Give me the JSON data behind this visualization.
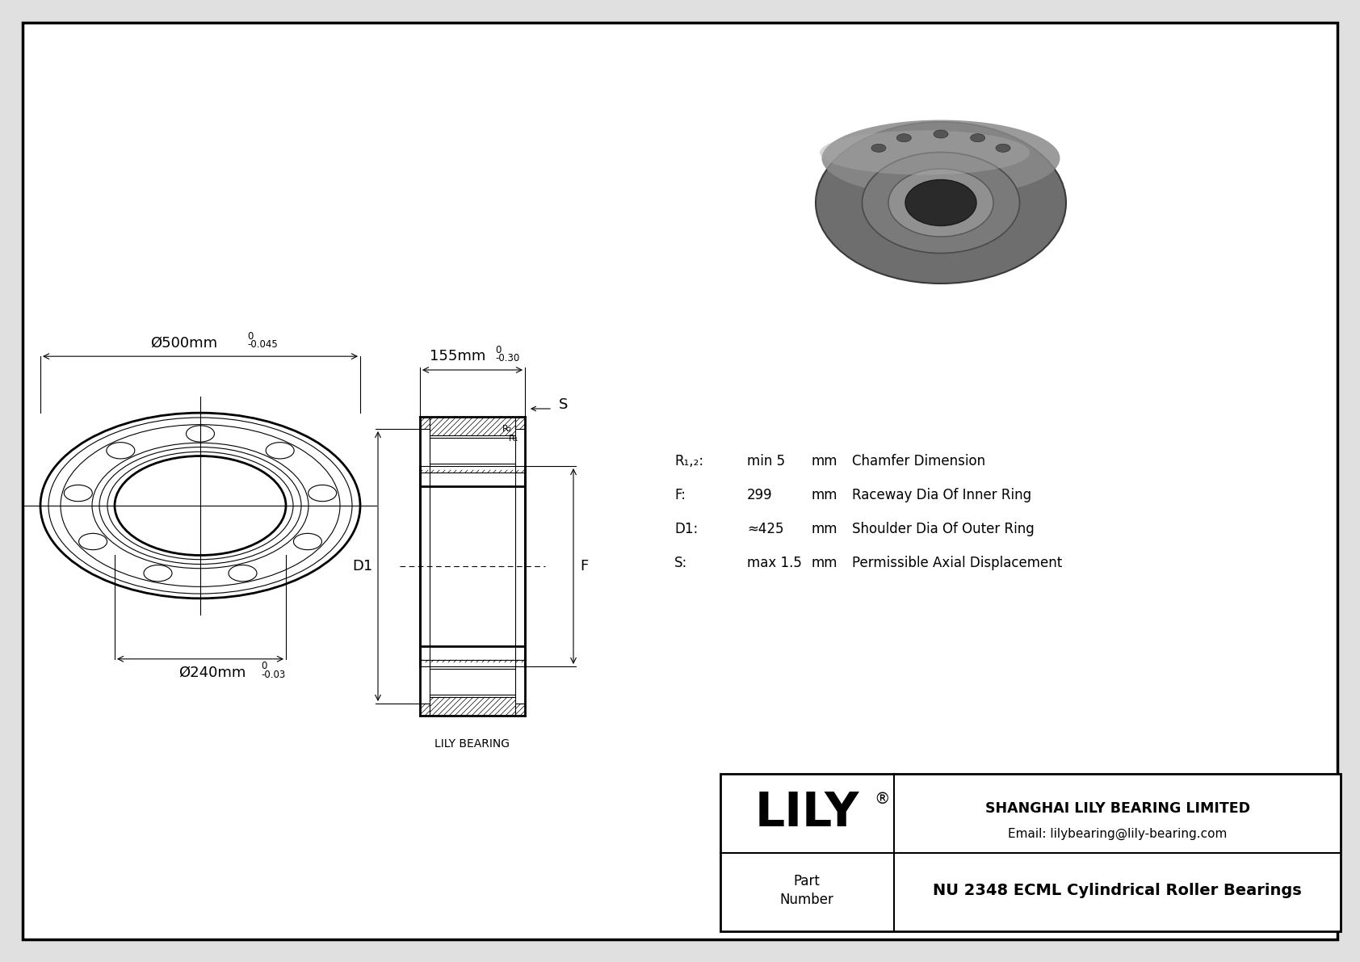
{
  "bg_color": "#e0e0e0",
  "line_color": "#000000",
  "company": "SHANGHAI LILY BEARING LIMITED",
  "email": "Email: lilybearing@lily-bearing.com",
  "part_label": "Part\nNumber",
  "part_number": "NU 2348 ECML Cylindrical Roller Bearings",
  "lily_brand": "LILY",
  "lily_reg": "®",
  "dim_outer_text": "Ø500mm",
  "dim_outer_tol_upper": "0",
  "dim_outer_tol_lower": "-0.045",
  "dim_inner_text": "Ø240mm",
  "dim_inner_tol_upper": "0",
  "dim_inner_tol_lower": "-0.03",
  "dim_width_text": "155mm",
  "dim_width_tol_upper": "0",
  "dim_width_tol_lower": "-0.30",
  "label_S": "S",
  "label_D1": "D1",
  "label_F": "F",
  "label_R1": "R₁",
  "label_R2": "R₂",
  "specs": [
    {
      "symbol": "R₁,₂:",
      "value": "min 5",
      "unit": "mm",
      "desc": "Chamfer Dimension"
    },
    {
      "symbol": "F:",
      "value": "299",
      "unit": "mm",
      "desc": "Raceway Dia Of Inner Ring"
    },
    {
      "symbol": "D1:",
      "value": "≈425",
      "unit": "mm",
      "desc": "Shoulder Dia Of Outer Ring"
    },
    {
      "symbol": "S:",
      "value": "max 1.5",
      "unit": "mm",
      "desc": "Permissible Axial Displacement"
    }
  ],
  "lily_bearing_label": "LILY BEARING"
}
